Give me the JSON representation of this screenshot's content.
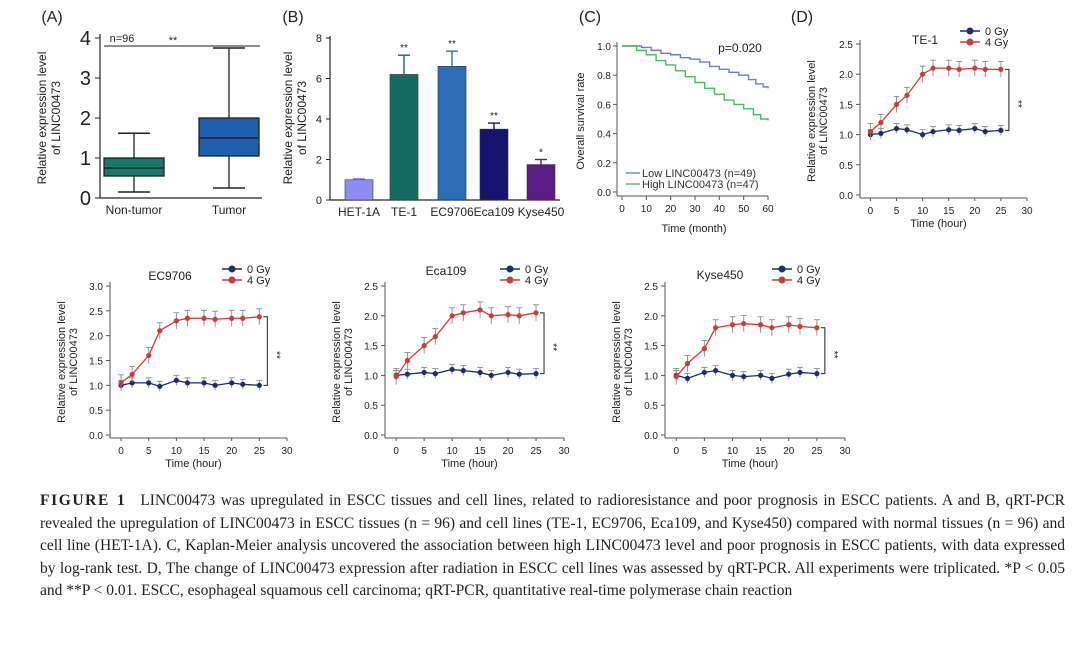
{
  "figure": {
    "panels": {
      "A": {
        "label": "(A)",
        "ylabel": [
          "Relative expression level",
          "of LINC00473"
        ],
        "annotation_n": "n=96",
        "significance": "**"
      },
      "B": {
        "label": "(B)",
        "ylabel": [
          "Relative expression level",
          "of LINC00473"
        ]
      },
      "C": {
        "label": "(C)",
        "pvalue": "p=0.020"
      },
      "D": {
        "label": "(D)"
      }
    }
  },
  "chart_data": [
    {
      "panel": "A",
      "type": "box",
      "categories": [
        "Non-tumor",
        "Tumor"
      ],
      "boxes": [
        {
          "min": 0.15,
          "q1": 0.55,
          "median": 0.75,
          "q3": 1.0,
          "max": 1.62,
          "color": "#137a6c"
        },
        {
          "min": 0.25,
          "q1": 1.05,
          "median": 1.5,
          "q3": 2.0,
          "max": 3.75,
          "color": "#1f5fb0"
        }
      ],
      "ylim": [
        0,
        4
      ],
      "yticks": [
        "0",
        "1",
        "2",
        "3",
        "4"
      ]
    },
    {
      "panel": "B",
      "type": "bar",
      "categories": [
        "HET-1A",
        "TE-1",
        "EC9706",
        "Eca109",
        "Kyse450"
      ],
      "values": [
        1.0,
        6.2,
        6.6,
        3.5,
        1.75
      ],
      "errors": [
        0.05,
        0.95,
        0.75,
        0.3,
        0.25
      ],
      "colors": [
        "#8d8df2",
        "#166b5f",
        "#2c6db8",
        "#14146e",
        "#5a1c87"
      ],
      "significance": [
        "",
        "**",
        "**",
        "**",
        "*"
      ],
      "ylim": [
        0,
        8
      ],
      "yticks": [
        "0",
        "2",
        "4",
        "6",
        "8"
      ]
    },
    {
      "panel": "C",
      "type": "line",
      "xlabel": "Time (month)",
      "ylabel": "Overall survival rate",
      "xticks": [
        "0",
        "10",
        "20",
        "30",
        "40",
        "50",
        "60"
      ],
      "yticks": [
        "0.0",
        "0.2",
        "0.4",
        "0.6",
        "0.8",
        "1.0"
      ],
      "xlim": [
        0,
        60
      ],
      "ylim": [
        0,
        1.0
      ],
      "series": [
        {
          "name": "Low LINC00473 (n=49)",
          "color": "#6b7fc4",
          "points": [
            [
              0,
              1.0
            ],
            [
              5,
              1.0
            ],
            [
              8,
              0.99
            ],
            [
              12,
              0.97
            ],
            [
              16,
              0.95
            ],
            [
              20,
              0.94
            ],
            [
              24,
              0.92
            ],
            [
              28,
              0.91
            ],
            [
              32,
              0.89
            ],
            [
              36,
              0.86
            ],
            [
              40,
              0.84
            ],
            [
              44,
              0.82
            ],
            [
              48,
              0.8
            ],
            [
              52,
              0.77
            ],
            [
              55,
              0.74
            ],
            [
              58,
              0.72
            ],
            [
              60,
              0.71
            ]
          ]
        },
        {
          "name": "High LINC00473 (n=47)",
          "color": "#4bb96a",
          "points": [
            [
              0,
              1.0
            ],
            [
              3,
              1.0
            ],
            [
              6,
              0.97
            ],
            [
              10,
              0.94
            ],
            [
              14,
              0.9
            ],
            [
              18,
              0.87
            ],
            [
              22,
              0.83
            ],
            [
              26,
              0.79
            ],
            [
              30,
              0.75
            ],
            [
              34,
              0.71
            ],
            [
              38,
              0.67
            ],
            [
              42,
              0.63
            ],
            [
              46,
              0.6
            ],
            [
              50,
              0.57
            ],
            [
              54,
              0.53
            ],
            [
              57,
              0.5
            ],
            [
              60,
              0.49
            ]
          ]
        }
      ]
    },
    {
      "panel": "D",
      "type": "line",
      "title": "TE-1",
      "xlabel": "Time (hour)",
      "ylabel": [
        "Relative expression level",
        "of LINC00473"
      ],
      "x": [
        0,
        2,
        5,
        7,
        10,
        12,
        15,
        17,
        20,
        22,
        25
      ],
      "xticks": [
        "0",
        "5",
        "10",
        "15",
        "20",
        "25",
        "30"
      ],
      "yticks": [
        "0.0",
        "0.5",
        "1.0",
        "1.5",
        "2.0",
        "2.5"
      ],
      "xlim": [
        -2,
        30
      ],
      "ylim": [
        0,
        2.5
      ],
      "significance": "**",
      "series": [
        {
          "name": "0 Gy",
          "color": "#1d2d6e",
          "values": [
            1.0,
            1.02,
            1.1,
            1.08,
            1.0,
            1.05,
            1.08,
            1.07,
            1.1,
            1.05,
            1.07
          ]
        },
        {
          "name": "4 Gy",
          "color": "#d03a3a",
          "values": [
            1.05,
            1.2,
            1.5,
            1.65,
            2.0,
            2.1,
            2.1,
            2.08,
            2.1,
            2.08,
            2.08
          ]
        }
      ]
    },
    {
      "panel": "D",
      "type": "line",
      "title": "EC9706",
      "xlabel": "Time (hour)",
      "ylabel": [
        "Relative expression level",
        "of LINC00473"
      ],
      "x": [
        0,
        2,
        5,
        7,
        10,
        12,
        15,
        17,
        20,
        22,
        25
      ],
      "xticks": [
        "0",
        "5",
        "10",
        "15",
        "20",
        "25",
        "30"
      ],
      "yticks": [
        "0.0",
        "0.5",
        "1.0",
        "1.5",
        "2.0",
        "2.5",
        "3.0"
      ],
      "xlim": [
        -2,
        30
      ],
      "ylim": [
        0,
        3.0
      ],
      "significance": "**",
      "series": [
        {
          "name": "0 Gy",
          "color": "#1d2d6e",
          "values": [
            1.0,
            1.05,
            1.05,
            0.98,
            1.1,
            1.05,
            1.05,
            1.0,
            1.05,
            1.02,
            1.0
          ]
        },
        {
          "name": "4 Gy",
          "color": "#d03a3a",
          "values": [
            1.05,
            1.22,
            1.6,
            2.1,
            2.3,
            2.35,
            2.35,
            2.33,
            2.35,
            2.35,
            2.38
          ]
        }
      ]
    },
    {
      "panel": "D",
      "type": "line",
      "title": "Eca109",
      "xlabel": "Time (hour)",
      "ylabel": [
        "Relative expression level",
        "of LINC00473"
      ],
      "x": [
        0,
        2,
        5,
        7,
        10,
        12,
        15,
        17,
        20,
        22,
        25
      ],
      "xticks": [
        "0",
        "5",
        "10",
        "15",
        "20",
        "25",
        "30"
      ],
      "yticks": [
        "0.0",
        "0.5",
        "1.0",
        "1.5",
        "2.0",
        "2.5"
      ],
      "xlim": [
        -2,
        30
      ],
      "ylim": [
        0,
        2.5
      ],
      "significance": "**",
      "series": [
        {
          "name": "0 Gy",
          "color": "#1d2d6e",
          "values": [
            1.0,
            1.02,
            1.05,
            1.03,
            1.1,
            1.08,
            1.05,
            1.0,
            1.05,
            1.02,
            1.03
          ]
        },
        {
          "name": "4 Gy",
          "color": "#d03a3a",
          "values": [
            0.98,
            1.25,
            1.5,
            1.65,
            2.0,
            2.05,
            2.1,
            2.0,
            2.02,
            2.0,
            2.05
          ]
        }
      ]
    },
    {
      "panel": "D",
      "type": "line",
      "title": "Kyse450",
      "xlabel": "Time (hour)",
      "ylabel": [
        "Relative expression level",
        "of LINC00473"
      ],
      "x": [
        0,
        2,
        5,
        7,
        10,
        12,
        15,
        17,
        20,
        22,
        25
      ],
      "xticks": [
        "0",
        "5",
        "10",
        "15",
        "20",
        "25",
        "30"
      ],
      "yticks": [
        "0.0",
        "0.5",
        "1.0",
        "1.5",
        "2.0",
        "2.5"
      ],
      "xlim": [
        -2,
        30
      ],
      "ylim": [
        0,
        2.5
      ],
      "significance": "**",
      "series": [
        {
          "name": "0 Gy",
          "color": "#1d2d6e",
          "values": [
            1.0,
            0.95,
            1.05,
            1.08,
            1.0,
            0.98,
            1.0,
            0.95,
            1.02,
            1.05,
            1.03
          ]
        },
        {
          "name": "4 Gy",
          "color": "#d03a3a",
          "values": [
            0.98,
            1.2,
            1.45,
            1.8,
            1.85,
            1.87,
            1.85,
            1.8,
            1.85,
            1.82,
            1.8
          ]
        }
      ]
    }
  ],
  "caption": {
    "label": "FIGURE 1",
    "text": "LINC00473 was upregulated in ESCC tissues and cell lines, related to radioresistance and poor prognosis in ESCC patients. A and B, qRT-PCR revealed the upregulation of LINC00473 in ESCC tissues (n = 96) and cell lines (TE-1, EC9706, Eca109, and Kyse450) compared with normal tissues (n = 96) and cell line (HET-1A). C, Kaplan-Meier analysis uncovered the association between high LINC00473 level and poor prognosis in ESCC patients, with data expressed by log-rank test. D, The change of LINC00473 expression after radiation in ESCC cell lines was assessed by qRT-PCR. All experiments were triplicated. *P < 0.05 and **P < 0.01. ESCC, esophageal squamous cell carcinoma; qRT-PCR, quantitative real-time polymerase chain reaction"
  }
}
